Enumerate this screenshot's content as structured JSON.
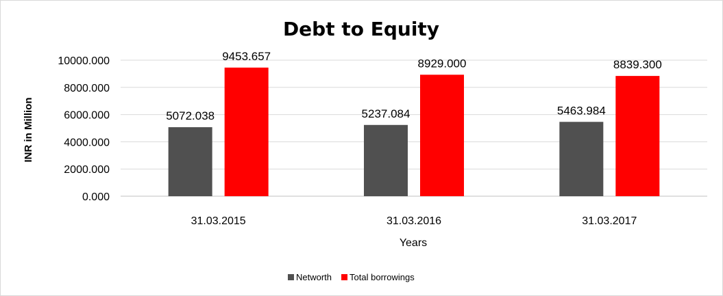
{
  "chart_data": {
    "type": "bar",
    "title": "Debt to Equity",
    "xlabel": "Years",
    "ylabel": "INR in Million",
    "categories": [
      "31.03.2015",
      "31.03.2016",
      "31.03.2017"
    ],
    "series": [
      {
        "name": "Networth",
        "values": [
          5072.038,
          5237.084,
          5463.984
        ],
        "color": "#505050"
      },
      {
        "name": "Total borrowings",
        "values": [
          9453.657,
          8929.0,
          8839.3
        ],
        "color": "#ff0000"
      }
    ],
    "yticks": [
      "0.000",
      "2000.000",
      "4000.000",
      "6000.000",
      "8000.000",
      "10000.000"
    ],
    "ylim": [
      0,
      10000
    ],
    "grid": true,
    "legend_position": "bottom"
  }
}
